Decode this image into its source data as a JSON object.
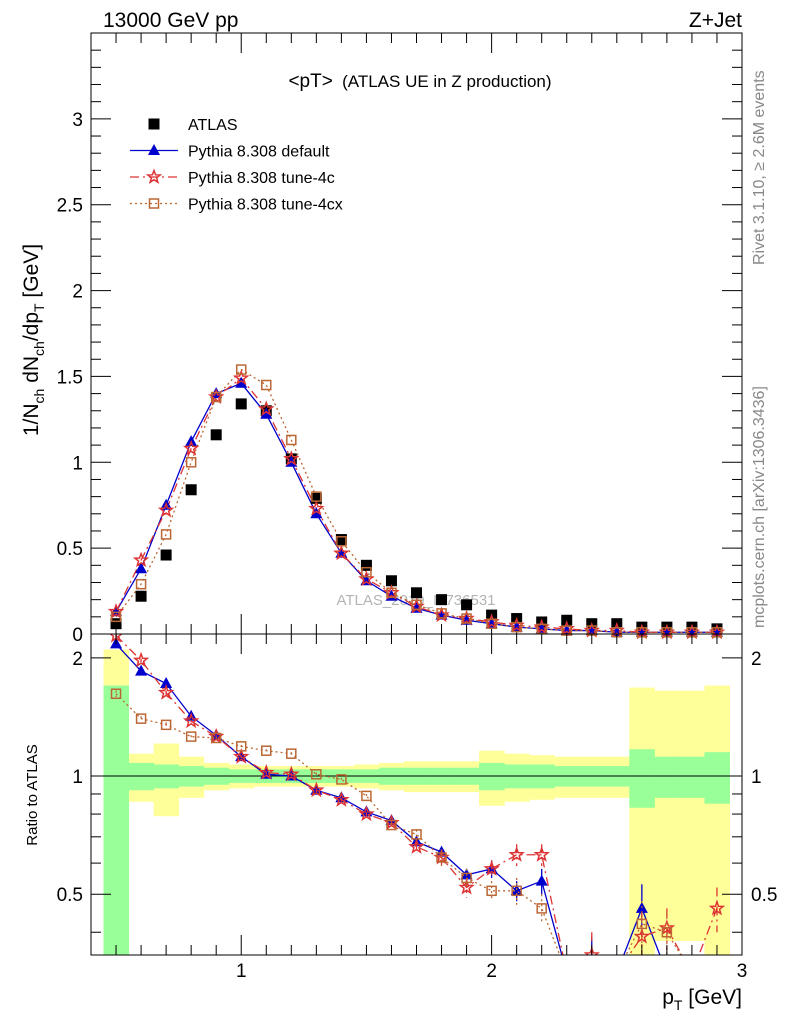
{
  "header": {
    "left": "13000 GeV pp",
    "right": "Z+Jet"
  },
  "side": {
    "rivet": "Rivet 3.1.10, ≥ 2.6M events",
    "mcplots": "mcplots.cern.ch [arXiv:1306.3436]"
  },
  "chart_data": [
    {
      "type": "scatter",
      "panel": "main",
      "title": "<pT> (ATLAS UE in Z production)",
      "title_main": "<pT>",
      "title_sub": "(ATLAS UE in Z production)",
      "watermark": "ATLAS_2019_I1736531",
      "xlabel": "p_T [GeV]",
      "ylabel": "1/N_ch dN_ch/dp_T [GeV]",
      "xlim": [
        0.4,
        3.0
      ],
      "ylim": [
        0,
        3.5
      ],
      "xticks": [
        1,
        2,
        3
      ],
      "yticks": [
        0,
        0.5,
        1,
        1.5,
        2,
        2.5,
        3
      ],
      "ytick_labels": [
        "0",
        "0.5",
        "1",
        "1.5",
        "2",
        "2.5",
        "3"
      ],
      "legend_position": "top-left",
      "x": [
        0.5,
        0.6,
        0.7,
        0.8,
        0.9,
        1.0,
        1.1,
        1.2,
        1.3,
        1.4,
        1.5,
        1.6,
        1.7,
        1.8,
        1.9,
        2.0,
        2.1,
        2.2,
        2.3,
        2.4,
        2.5,
        2.6,
        2.7,
        2.8,
        2.9
      ],
      "series": [
        {
          "name": "ATLAS",
          "color": "#000000",
          "marker": "square",
          "values": [
            0.06,
            0.22,
            0.46,
            0.84,
            1.16,
            1.34,
            1.3,
            1.02,
            0.79,
            0.55,
            0.4,
            0.31,
            0.24,
            0.2,
            0.17,
            0.11,
            0.09,
            0.07,
            0.08,
            0.06,
            0.06,
            0.04,
            0.04,
            0.04,
            0.03
          ]
        },
        {
          "name": "Pythia 8.308 default",
          "color": "#0000cc",
          "marker": "triangle",
          "dash": "",
          "values": [
            0.13,
            0.38,
            0.75,
            1.12,
            1.4,
            1.46,
            1.28,
            1.0,
            0.7,
            0.47,
            0.31,
            0.22,
            0.15,
            0.11,
            0.08,
            0.06,
            0.04,
            0.03,
            0.02,
            0.02,
            0.01,
            0.01,
            0.01,
            0.01,
            0.01
          ]
        },
        {
          "name": "Pythia 8.308 tune-4c",
          "color": "#dd3333",
          "marker": "star",
          "dash": "9,4,2,4",
          "values": [
            0.13,
            0.43,
            0.72,
            1.08,
            1.38,
            1.49,
            1.31,
            1.02,
            0.73,
            0.47,
            0.32,
            0.24,
            0.16,
            0.11,
            0.09,
            0.07,
            0.05,
            0.04,
            0.03,
            0.02,
            0.02,
            0.01,
            0.01,
            0.01,
            0.01
          ]
        },
        {
          "name": "Pythia 8.308 tune-4cx",
          "color": "#bb6633",
          "marker": "open-square",
          "dash": "2,3",
          "values": [
            0.1,
            0.29,
            0.58,
            1.0,
            1.38,
            1.54,
            1.45,
            1.13,
            0.8,
            0.54,
            0.36,
            0.24,
            0.17,
            0.12,
            0.09,
            0.06,
            0.04,
            0.03,
            0.02,
            0.02,
            0.01,
            0.01,
            0.01,
            0.01,
            0.01
          ]
        }
      ]
    },
    {
      "type": "line",
      "panel": "ratio",
      "ylabel": "Ratio to ATLAS",
      "xlim": [
        0.4,
        3.0
      ],
      "ylim": [
        0.35,
        2.3
      ],
      "yticks": [
        0.5,
        1,
        2
      ],
      "ytick_labels": [
        "0.5",
        "1",
        "2"
      ],
      "xticks": [
        1,
        2,
        3
      ],
      "xtick_labels": [
        "1",
        "2",
        "3"
      ],
      "edges": [
        0.45,
        0.55,
        0.65,
        0.75,
        0.85,
        0.95,
        1.05,
        1.15,
        1.25,
        1.35,
        1.45,
        1.55,
        1.65,
        1.75,
        1.85,
        1.95,
        2.05,
        2.15,
        2.25,
        2.35,
        2.45,
        2.55,
        2.65,
        2.75,
        2.85,
        2.95
      ],
      "band_green": [
        [
          0.3,
          1.7
        ],
        [
          0.92,
          1.08
        ],
        [
          0.93,
          1.07
        ],
        [
          0.94,
          1.06
        ],
        [
          0.95,
          1.05
        ],
        [
          0.96,
          1.04
        ],
        [
          0.96,
          1.04
        ],
        [
          0.96,
          1.04
        ],
        [
          0.96,
          1.04
        ],
        [
          0.96,
          1.04
        ],
        [
          0.96,
          1.04
        ],
        [
          0.95,
          1.05
        ],
        [
          0.95,
          1.05
        ],
        [
          0.95,
          1.05
        ],
        [
          0.95,
          1.05
        ],
        [
          0.92,
          1.08
        ],
        [
          0.93,
          1.07
        ],
        [
          0.93,
          1.07
        ],
        [
          0.94,
          1.06
        ],
        [
          0.94,
          1.06
        ],
        [
          0.94,
          1.06
        ],
        [
          0.83,
          1.17
        ],
        [
          0.88,
          1.12
        ],
        [
          0.88,
          1.12
        ],
        [
          0.85,
          1.15
        ]
      ],
      "band_yellow": [
        [
          0.3,
          2.1
        ],
        [
          0.86,
          1.14
        ],
        [
          0.79,
          1.21
        ],
        [
          0.88,
          1.12
        ],
        [
          0.92,
          1.08
        ],
        [
          0.93,
          1.07
        ],
        [
          0.94,
          1.06
        ],
        [
          0.94,
          1.06
        ],
        [
          0.94,
          1.06
        ],
        [
          0.94,
          1.06
        ],
        [
          0.93,
          1.07
        ],
        [
          0.92,
          1.08
        ],
        [
          0.91,
          1.09
        ],
        [
          0.91,
          1.09
        ],
        [
          0.91,
          1.09
        ],
        [
          0.84,
          1.16
        ],
        [
          0.86,
          1.14
        ],
        [
          0.87,
          1.13
        ],
        [
          0.88,
          1.12
        ],
        [
          0.88,
          1.12
        ],
        [
          0.88,
          1.12
        ],
        [
          0.35,
          1.68
        ],
        [
          0.38,
          1.65
        ],
        [
          0.38,
          1.65
        ],
        [
          0.35,
          1.7
        ]
      ],
      "series": [
        {
          "name": "Pythia 8.308 default",
          "color": "#0000cc",
          "marker": "triangle",
          "dash": "",
          "values": [
            2.17,
            1.85,
            1.72,
            1.42,
            1.27,
            1.12,
            1.01,
            1.0,
            0.92,
            0.88,
            0.81,
            0.77,
            0.68,
            0.64,
            0.56,
            0.58,
            0.51,
            0.54,
            0.3,
            0.34,
            0.3,
            0.46,
            0.3,
            0.3,
            0.3
          ],
          "errors": [
            0.02,
            0.01,
            0.01,
            0.01,
            0.01,
            0.01,
            0.01,
            0.01,
            0.01,
            0.01,
            0.01,
            0.01,
            0.01,
            0.02,
            0.02,
            0.03,
            0.03,
            0.04,
            0.04,
            0.05,
            0.05,
            0.07,
            0.05,
            0.05,
            0.05
          ]
        },
        {
          "name": "Pythia 8.308 tune-4c",
          "color": "#dd3333",
          "marker": "star",
          "dash": "9,4,2,4",
          "values": [
            2.28,
            1.97,
            1.63,
            1.38,
            1.26,
            1.12,
            1.02,
            1.01,
            0.92,
            0.87,
            0.8,
            0.76,
            0.66,
            0.62,
            0.52,
            0.58,
            0.63,
            0.63,
            0.3,
            0.35,
            0.3,
            0.39,
            0.41,
            0.3,
            0.46
          ],
          "errors": [
            0.03,
            0.02,
            0.02,
            0.01,
            0.01,
            0.01,
            0.01,
            0.01,
            0.01,
            0.01,
            0.01,
            0.01,
            0.02,
            0.03,
            0.03,
            0.03,
            0.04,
            0.04,
            0.05,
            0.05,
            0.05,
            0.06,
            0.05,
            0.05,
            0.06
          ]
        },
        {
          "name": "Pythia 8.308 tune-4cx",
          "color": "#bb6633",
          "marker": "open-square",
          "dash": "2,3",
          "values": [
            1.62,
            1.4,
            1.35,
            1.26,
            1.25,
            1.19,
            1.16,
            1.14,
            1.01,
            0.98,
            0.89,
            0.75,
            0.71,
            0.62,
            0.55,
            0.51,
            0.51,
            0.46,
            0.3,
            0.3,
            0.3,
            0.42,
            0.4,
            0.3,
            0.3
          ],
          "errors": [
            0.03,
            0.02,
            0.02,
            0.01,
            0.01,
            0.01,
            0.01,
            0.01,
            0.01,
            0.01,
            0.01,
            0.01,
            0.02,
            0.03,
            0.03,
            0.03,
            0.04,
            0.04,
            0.05,
            0.05,
            0.05,
            0.06,
            0.05,
            0.05,
            0.05
          ]
        }
      ]
    }
  ]
}
